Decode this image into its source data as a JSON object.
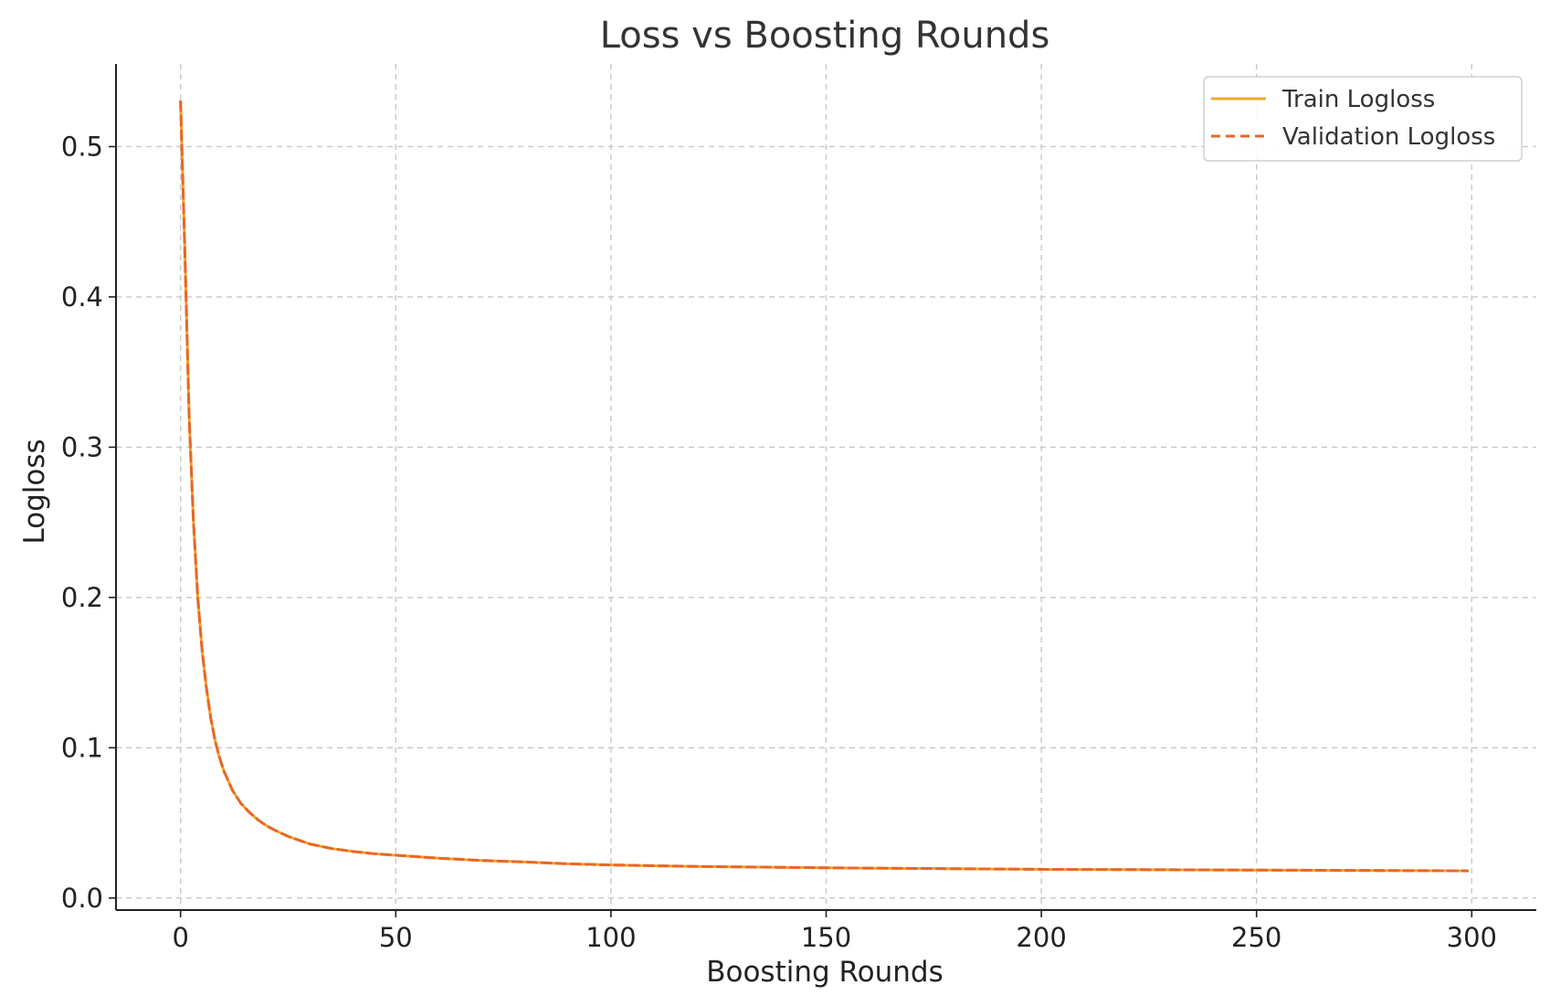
{
  "chart_data": {
    "type": "line",
    "title": "Loss vs Boosting Rounds",
    "xlabel": "Boosting Rounds",
    "ylabel": "Logloss",
    "xlim": [
      -15,
      315
    ],
    "ylim": [
      -0.008,
      0.555
    ],
    "xticks": [
      0,
      50,
      100,
      150,
      200,
      250,
      300
    ],
    "xtick_labels": [
      "0",
      "50",
      "100",
      "150",
      "200",
      "250",
      "300"
    ],
    "yticks": [
      0.0,
      0.1,
      0.2,
      0.3,
      0.4,
      0.5
    ],
    "ytick_labels": [
      "0.0",
      "0.1",
      "0.2",
      "0.3",
      "0.4",
      "0.5"
    ],
    "grid": true,
    "legend_position": "top-right",
    "x": [
      0,
      1,
      2,
      3,
      4,
      5,
      6,
      7,
      8,
      9,
      10,
      12,
      14,
      16,
      18,
      20,
      22,
      25,
      28,
      30,
      35,
      40,
      45,
      50,
      55,
      60,
      70,
      80,
      90,
      100,
      110,
      120,
      130,
      140,
      150,
      160,
      170,
      180,
      190,
      200,
      210,
      220,
      230,
      240,
      250,
      260,
      270,
      280,
      290,
      299
    ],
    "series": [
      {
        "name": "Train Logloss",
        "color": "#f5a623",
        "style": "solid",
        "values": [
          0.53,
          0.43,
          0.32,
          0.25,
          0.2,
          0.165,
          0.14,
          0.12,
          0.105,
          0.094,
          0.085,
          0.072,
          0.063,
          0.057,
          0.052,
          0.048,
          0.045,
          0.041,
          0.038,
          0.036,
          0.033,
          0.031,
          0.0295,
          0.0285,
          0.0275,
          0.0265,
          0.025,
          0.024,
          0.0228,
          0.022,
          0.0215,
          0.021,
          0.0207,
          0.0204,
          0.0201,
          0.0199,
          0.0197,
          0.0195,
          0.0193,
          0.0191,
          0.019,
          0.0189,
          0.0188,
          0.0187,
          0.0186,
          0.0185,
          0.0184,
          0.0183,
          0.0182,
          0.0181
        ]
      },
      {
        "name": "Validation Logloss",
        "color": "#e8672a",
        "style": "dashed",
        "values": [
          0.53,
          0.43,
          0.32,
          0.25,
          0.2,
          0.165,
          0.14,
          0.12,
          0.105,
          0.094,
          0.085,
          0.072,
          0.063,
          0.057,
          0.052,
          0.048,
          0.045,
          0.041,
          0.038,
          0.036,
          0.033,
          0.031,
          0.0295,
          0.0285,
          0.0275,
          0.0265,
          0.025,
          0.024,
          0.0228,
          0.022,
          0.0215,
          0.021,
          0.0207,
          0.0204,
          0.0201,
          0.0199,
          0.0197,
          0.0195,
          0.0193,
          0.0191,
          0.019,
          0.0189,
          0.0188,
          0.0187,
          0.0186,
          0.0185,
          0.0184,
          0.0183,
          0.0182,
          0.0181
        ]
      }
    ]
  }
}
